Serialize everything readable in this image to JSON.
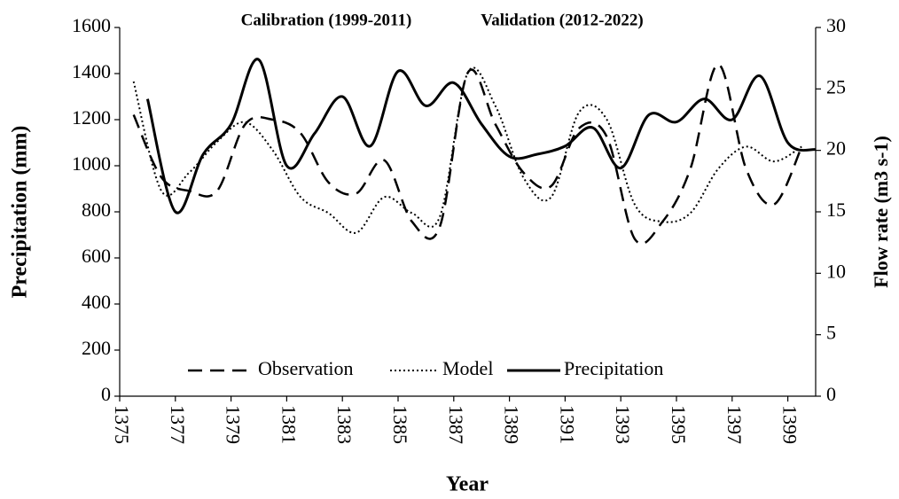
{
  "chart_data": {
    "type": "line",
    "annotations": [
      "Calibration (1999-2011)",
      "Validation (2012-2022)"
    ],
    "xlabel": "Year",
    "ylabel": "Precipitation (mm)",
    "y2label": "Flow rate (m3 s-1)",
    "xlim": [
      1375,
      1400
    ],
    "xticks": [
      1375,
      1377,
      1379,
      1381,
      1383,
      1385,
      1387,
      1389,
      1391,
      1393,
      1395,
      1397,
      1399
    ],
    "ylim": [
      0,
      1600
    ],
    "yticks": [
      0,
      200,
      400,
      600,
      800,
      1000,
      1200,
      1400,
      1600
    ],
    "y2lim": [
      0,
      30
    ],
    "y2ticks": [
      0,
      5,
      10,
      15,
      20,
      25,
      30
    ],
    "legend": "bottom",
    "series": [
      {
        "name": "Observation",
        "color": "#000000",
        "style": "dashed",
        "axis": "y2",
        "x": [
          1375.5,
          1376.5,
          1377.5,
          1378.5,
          1379.5,
          1380.5,
          1381.5,
          1382.5,
          1383.5,
          1384.5,
          1385.5,
          1386.5,
          1387.5,
          1388.5,
          1389.5,
          1390.5,
          1391.5,
          1392.5,
          1393.5,
          1394.5,
          1395.5,
          1396.5,
          1397.5,
          1398.5,
          1399.5
        ],
        "values": [
          22.9,
          17.8,
          16.7,
          16.7,
          22.1,
          22.5,
          21.4,
          17.4,
          16.5,
          19.2,
          14.2,
          13.8,
          26.3,
          22.1,
          18.2,
          17.1,
          21.8,
          21.1,
          12.8,
          14.2,
          18.5,
          27.0,
          18.5,
          15.6,
          20.3
        ]
      },
      {
        "name": "Model",
        "color": "#000000",
        "style": "dotted",
        "axis": "y2",
        "x": [
          1375.5,
          1376.5,
          1377.5,
          1378.5,
          1379.5,
          1380.5,
          1381.5,
          1382.5,
          1383.5,
          1384.5,
          1385.5,
          1386.5,
          1387.5,
          1388.5,
          1389.5,
          1390.5,
          1391.5,
          1392.5,
          1393.5,
          1394.5,
          1395.5,
          1396.5,
          1397.5,
          1398.5,
          1399.5
        ],
        "values": [
          25.6,
          16.7,
          18.2,
          20.7,
          22.3,
          20.0,
          16.2,
          14.9,
          13.3,
          16.2,
          14.9,
          14.6,
          26.3,
          23.6,
          17.8,
          16.2,
          23.1,
          22.5,
          15.6,
          14.2,
          14.9,
          18.5,
          20.3,
          19.1,
          20.3
        ]
      },
      {
        "name": "Precipitation",
        "color": "#000000",
        "style": "solid",
        "x": [
          1376,
          1377,
          1378,
          1379,
          1380,
          1381,
          1382,
          1383,
          1384,
          1385,
          1386,
          1387,
          1388,
          1389,
          1390,
          1391,
          1392,
          1393,
          1394,
          1395,
          1396,
          1397,
          1398,
          1399,
          1400
        ],
        "values": [
          1290,
          800,
          1050,
          1180,
          1460,
          1000,
          1140,
          1300,
          1085,
          1410,
          1260,
          1360,
          1180,
          1040,
          1050,
          1085,
          1165,
          990,
          1220,
          1190,
          1290,
          1200,
          1390,
          1100,
          1070
        ]
      }
    ]
  }
}
